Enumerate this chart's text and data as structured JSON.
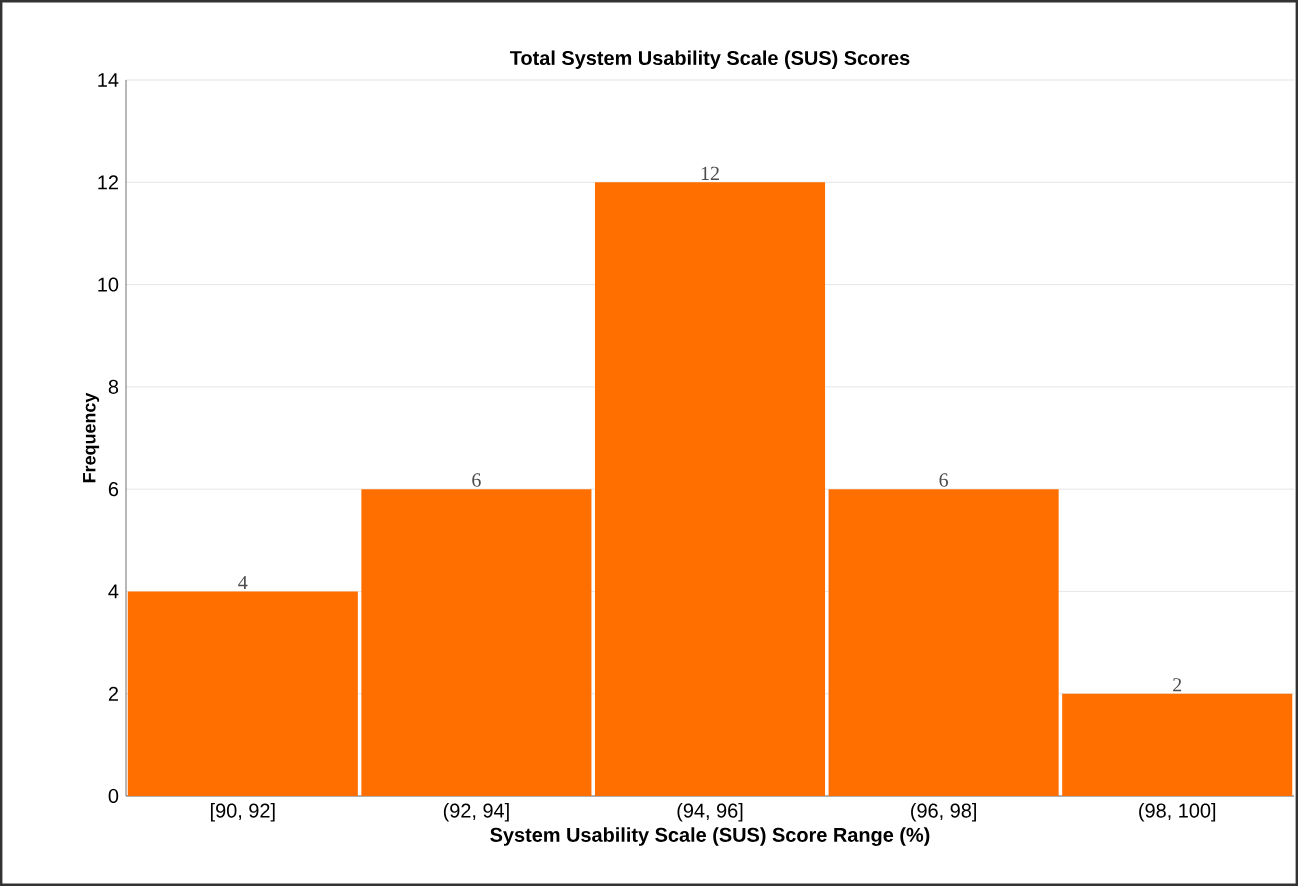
{
  "chart_data": {
    "type": "bar",
    "title": "Total System Usability Scale (SUS) Scores",
    "xlabel": "System Usability Scale (SUS) Score Range (%)",
    "ylabel": "Frequency",
    "categories": [
      "[90, 92]",
      "(92, 94]",
      "(94, 96]",
      "(96, 98]",
      "(98, 100]"
    ],
    "values": [
      4,
      6,
      12,
      6,
      2
    ],
    "color": "#ff6f00",
    "ylim": [
      0,
      14
    ],
    "yticks": [
      0,
      2,
      4,
      6,
      8,
      10,
      12,
      14
    ],
    "grid": "y",
    "data_labels": true
  }
}
